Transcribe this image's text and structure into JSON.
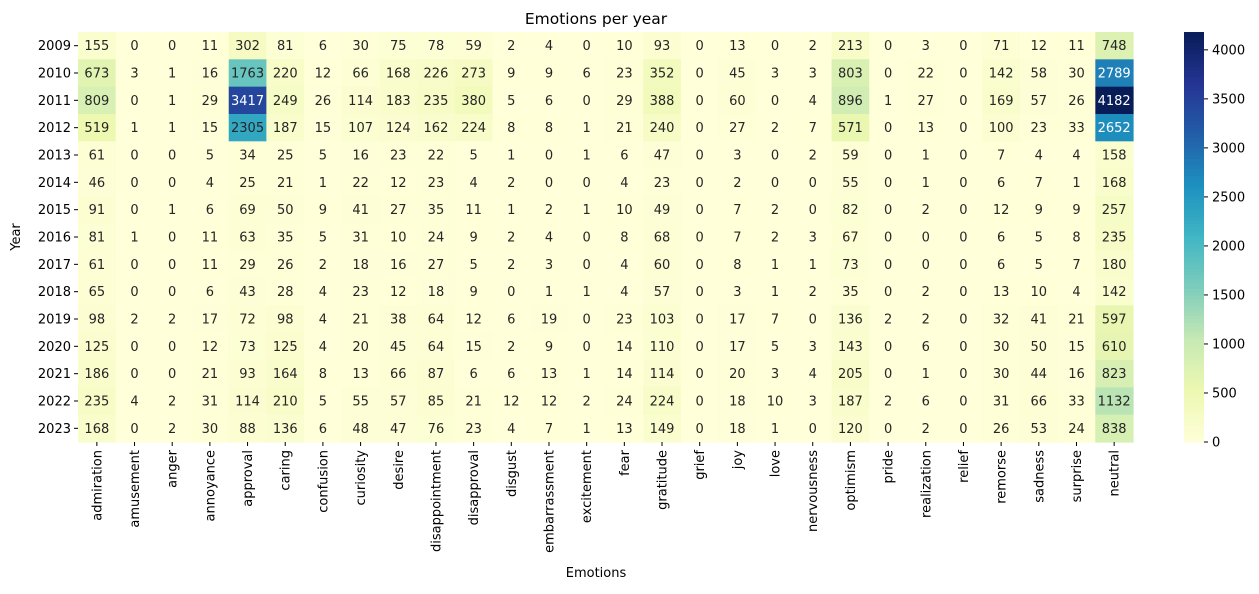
{
  "chart_data": {
    "type": "heatmap",
    "title": "Emotions per year",
    "xlabel": "Emotions",
    "ylabel": "Year",
    "x_categories": [
      "admiration",
      "amusement",
      "anger",
      "annoyance",
      "approval",
      "caring",
      "confusion",
      "curiosity",
      "desire",
      "disappointment",
      "disapproval",
      "disgust",
      "embarrassment",
      "excitement",
      "fear",
      "gratitude",
      "grief",
      "joy",
      "love",
      "nervousness",
      "optimism",
      "pride",
      "realization",
      "relief",
      "remorse",
      "sadness",
      "surprise",
      "neutral"
    ],
    "y_categories": [
      "2009",
      "2010",
      "2011",
      "2012",
      "2013",
      "2014",
      "2015",
      "2016",
      "2017",
      "2018",
      "2019",
      "2020",
      "2021",
      "2022",
      "2023"
    ],
    "values": [
      [
        155,
        0,
        0,
        11,
        302,
        81,
        6,
        30,
        75,
        78,
        59,
        2,
        4,
        0,
        10,
        93,
        0,
        13,
        0,
        2,
        213,
        0,
        3,
        0,
        71,
        12,
        11,
        748
      ],
      [
        673,
        3,
        1,
        16,
        1763,
        220,
        12,
        66,
        168,
        226,
        273,
        9,
        9,
        6,
        23,
        352,
        0,
        45,
        3,
        3,
        803,
        0,
        22,
        0,
        142,
        58,
        30,
        2789
      ],
      [
        809,
        0,
        1,
        29,
        3417,
        249,
        26,
        114,
        183,
        235,
        380,
        5,
        6,
        0,
        29,
        388,
        0,
        60,
        0,
        4,
        896,
        1,
        27,
        0,
        169,
        57,
        26,
        4182
      ],
      [
        519,
        1,
        1,
        15,
        2305,
        187,
        15,
        107,
        124,
        162,
        224,
        8,
        8,
        1,
        21,
        240,
        0,
        27,
        2,
        7,
        571,
        0,
        13,
        0,
        100,
        23,
        33,
        2652
      ],
      [
        61,
        0,
        0,
        5,
        34,
        25,
        5,
        16,
        23,
        22,
        5,
        1,
        0,
        1,
        6,
        47,
        0,
        3,
        0,
        2,
        59,
        0,
        1,
        0,
        7,
        4,
        4,
        158
      ],
      [
        46,
        0,
        0,
        4,
        25,
        21,
        1,
        22,
        12,
        23,
        4,
        2,
        0,
        0,
        4,
        23,
        0,
        2,
        0,
        0,
        55,
        0,
        1,
        0,
        6,
        7,
        1,
        168
      ],
      [
        91,
        0,
        1,
        6,
        69,
        50,
        9,
        41,
        27,
        35,
        11,
        1,
        2,
        1,
        10,
        49,
        0,
        7,
        2,
        0,
        82,
        0,
        2,
        0,
        12,
        9,
        9,
        257
      ],
      [
        81,
        1,
        0,
        11,
        63,
        35,
        5,
        31,
        10,
        24,
        9,
        2,
        4,
        0,
        8,
        68,
        0,
        7,
        2,
        3,
        67,
        0,
        0,
        0,
        6,
        5,
        8,
        235
      ],
      [
        61,
        0,
        0,
        11,
        29,
        26,
        2,
        18,
        16,
        27,
        5,
        2,
        3,
        0,
        4,
        60,
        0,
        8,
        1,
        1,
        73,
        0,
        0,
        0,
        6,
        5,
        7,
        180
      ],
      [
        65,
        0,
        0,
        6,
        43,
        28,
        4,
        23,
        12,
        18,
        9,
        0,
        1,
        1,
        4,
        57,
        0,
        3,
        1,
        2,
        35,
        0,
        2,
        0,
        13,
        10,
        4,
        142
      ],
      [
        98,
        2,
        2,
        17,
        72,
        98,
        4,
        21,
        38,
        64,
        12,
        6,
        19,
        0,
        23,
        103,
        0,
        17,
        7,
        0,
        136,
        2,
        2,
        0,
        32,
        41,
        21,
        597
      ],
      [
        125,
        0,
        0,
        12,
        73,
        125,
        4,
        20,
        45,
        64,
        15,
        2,
        9,
        0,
        14,
        110,
        0,
        17,
        5,
        3,
        143,
        0,
        6,
        0,
        30,
        50,
        15,
        610
      ],
      [
        186,
        0,
        0,
        21,
        93,
        164,
        8,
        13,
        66,
        87,
        6,
        6,
        13,
        1,
        14,
        114,
        0,
        20,
        3,
        4,
        205,
        0,
        1,
        0,
        30,
        44,
        16,
        823
      ],
      [
        235,
        4,
        2,
        31,
        114,
        210,
        5,
        55,
        57,
        85,
        21,
        12,
        12,
        2,
        24,
        224,
        0,
        18,
        10,
        3,
        187,
        2,
        6,
        0,
        31,
        66,
        33,
        1132
      ],
      [
        168,
        0,
        2,
        30,
        88,
        136,
        6,
        48,
        47,
        76,
        23,
        4,
        7,
        1,
        13,
        149,
        0,
        18,
        1,
        0,
        120,
        0,
        2,
        0,
        26,
        53,
        24,
        838
      ]
    ],
    "colorbar": {
      "colormap": "YlGnBu",
      "range": [
        0,
        4182
      ],
      "ticks": [
        0,
        500,
        1000,
        1500,
        2000,
        2500,
        3000,
        3500,
        4000
      ]
    },
    "annotations": "cell values shown",
    "grid": false
  }
}
